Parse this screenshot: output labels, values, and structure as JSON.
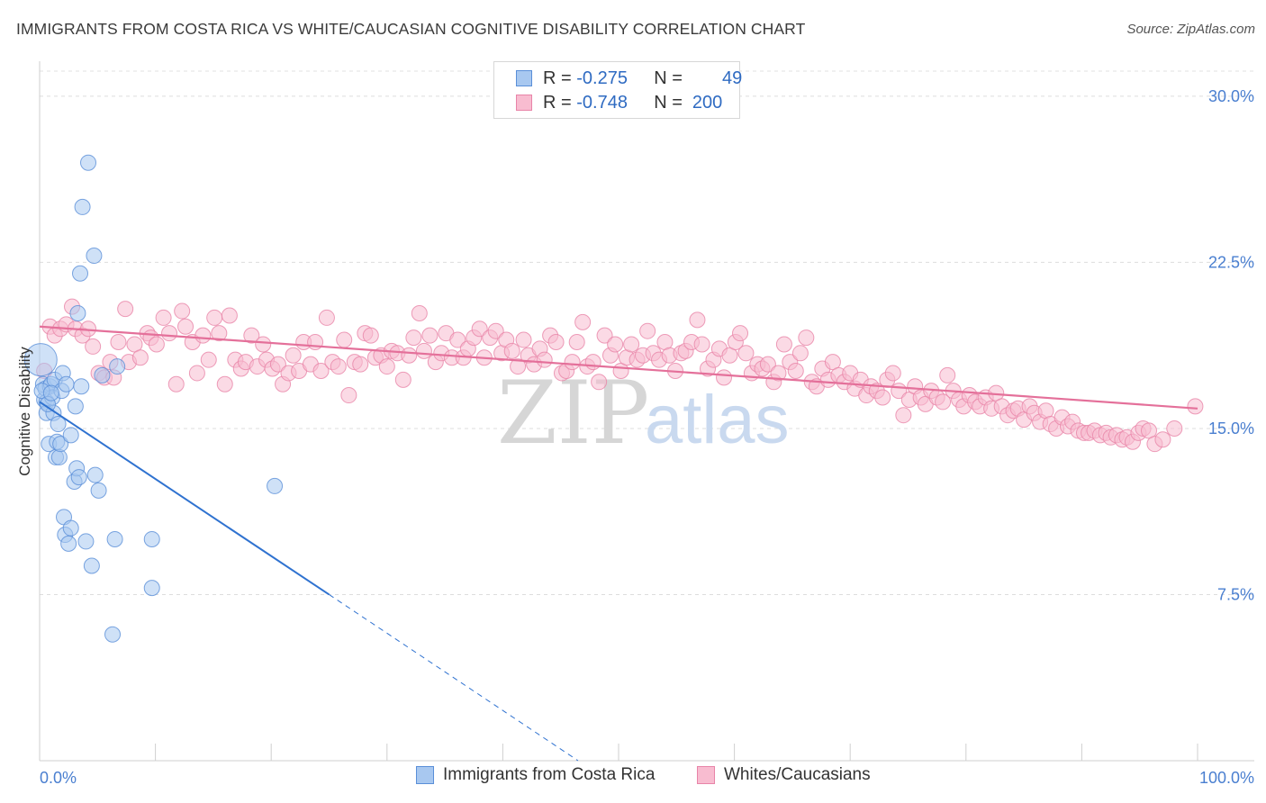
{
  "header": {
    "title": "IMMIGRANTS FROM COSTA RICA VS WHITE/CAUCASIAN COGNITIVE DISABILITY CORRELATION CHART",
    "source": "Source: ZipAtlas.com"
  },
  "legend": {
    "rows": [
      {
        "r_label": "R = ",
        "r_value": "-0.275",
        "n_label": "N = ",
        "n_value": "49",
        "color": "#a8c8f0",
        "border": "#5a8fd8"
      },
      {
        "r_label": "R = ",
        "r_value": "-0.748",
        "n_label": "N = ",
        "n_value": "200",
        "color": "#f8bcd0",
        "border": "#e884a8"
      }
    ]
  },
  "bottom_legend": {
    "items": [
      {
        "label": "Immigrants from Costa Rica",
        "color": "#a8c8f0",
        "border": "#5a8fd8"
      },
      {
        "label": "Whites/Caucasians",
        "color": "#f8bcd0",
        "border": "#e884a8"
      }
    ]
  },
  "watermark": {
    "zip": "ZIP",
    "atlas": "atlas"
  },
  "chart_data": {
    "type": "scatter",
    "title": "IMMIGRANTS FROM COSTA RICA VS WHITE/CAUCASIAN COGNITIVE DISABILITY CORRELATION CHART",
    "xlabel": "",
    "ylabel": "Cognitive Disability",
    "xlim": [
      0,
      100
    ],
    "ylim": [
      0,
      31.5
    ],
    "x_tick_labels": [
      "0.0%",
      "100.0%"
    ],
    "y_ticks": [
      7.5,
      15.0,
      22.5,
      30.0
    ],
    "y_tick_labels": [
      "7.5%",
      "15.0%",
      "22.5%",
      "30.0%"
    ],
    "grid": true,
    "legend_position": "top-center",
    "series": [
      {
        "name": "Immigrants from Costa Rica",
        "color": "#a8c8f0",
        "stroke": "#5a8fd8",
        "trend": {
          "x0": 0.0,
          "y0": 16.2,
          "x1": 25.0,
          "y1": 7.5,
          "x_dash_end": 46.5,
          "y_dash_end": 0.0,
          "color": "#2f72d0"
        },
        "points": [
          [
            0.1,
            18.1
          ],
          [
            0.3,
            17.0
          ],
          [
            0.4,
            16.3
          ],
          [
            0.5,
            16.8
          ],
          [
            0.6,
            16.2
          ],
          [
            0.6,
            15.7
          ],
          [
            0.8,
            14.3
          ],
          [
            0.9,
            16.9
          ],
          [
            1.0,
            17.0
          ],
          [
            1.1,
            16.4
          ],
          [
            1.2,
            15.7
          ],
          [
            1.3,
            17.2
          ],
          [
            1.4,
            13.7
          ],
          [
            1.5,
            14.4
          ],
          [
            1.6,
            15.2
          ],
          [
            1.7,
            13.7
          ],
          [
            1.8,
            14.3
          ],
          [
            1.9,
            16.7
          ],
          [
            2.0,
            17.5
          ],
          [
            2.1,
            11.0
          ],
          [
            2.2,
            10.2
          ],
          [
            2.3,
            17.0
          ],
          [
            2.5,
            9.8
          ],
          [
            2.7,
            10.5
          ],
          [
            2.7,
            14.7
          ],
          [
            3.0,
            12.6
          ],
          [
            3.1,
            16.0
          ],
          [
            3.2,
            13.2
          ],
          [
            3.3,
            20.2
          ],
          [
            3.4,
            12.8
          ],
          [
            3.5,
            22.0
          ],
          [
            3.6,
            16.9
          ],
          [
            3.7,
            25.0
          ],
          [
            4.0,
            9.9
          ],
          [
            4.2,
            27.0
          ],
          [
            4.5,
            8.8
          ],
          [
            4.7,
            22.8
          ],
          [
            4.8,
            12.9
          ],
          [
            5.1,
            12.2
          ],
          [
            5.4,
            17.4
          ],
          [
            6.3,
            5.7
          ],
          [
            6.5,
            10.0
          ],
          [
            6.7,
            17.8
          ],
          [
            9.7,
            10.0
          ],
          [
            9.7,
            7.8
          ],
          [
            20.3,
            12.4
          ],
          [
            0.2,
            16.7
          ],
          [
            0.7,
            16.1
          ],
          [
            1.0,
            16.6
          ]
        ]
      },
      {
        "name": "Whites/Caucasians",
        "color": "#f8bcd0",
        "stroke": "#e884a8",
        "trend": {
          "x0": 0.0,
          "y0": 19.6,
          "x1": 100.0,
          "y1": 15.9,
          "color": "#e4709a"
        },
        "points": [
          [
            0.4,
            17.6
          ],
          [
            0.9,
            19.6
          ],
          [
            1.3,
            19.2
          ],
          [
            1.8,
            19.5
          ],
          [
            2.3,
            19.7
          ],
          [
            2.8,
            20.5
          ],
          [
            3.1,
            19.5
          ],
          [
            3.7,
            19.2
          ],
          [
            4.2,
            19.5
          ],
          [
            4.6,
            18.7
          ],
          [
            5.1,
            17.5
          ],
          [
            5.6,
            17.3
          ],
          [
            6.1,
            18.0
          ],
          [
            6.4,
            17.3
          ],
          [
            6.8,
            18.9
          ],
          [
            7.4,
            20.4
          ],
          [
            7.7,
            18.0
          ],
          [
            8.2,
            18.8
          ],
          [
            8.7,
            18.2
          ],
          [
            9.3,
            19.3
          ],
          [
            9.6,
            19.1
          ],
          [
            10.1,
            18.8
          ],
          [
            10.7,
            20.0
          ],
          [
            11.2,
            19.3
          ],
          [
            11.8,
            17.0
          ],
          [
            12.3,
            20.3
          ],
          [
            12.6,
            19.6
          ],
          [
            13.2,
            18.9
          ],
          [
            13.6,
            17.5
          ],
          [
            14.1,
            19.2
          ],
          [
            14.6,
            18.1
          ],
          [
            15.1,
            20.0
          ],
          [
            15.5,
            19.3
          ],
          [
            16.0,
            17.0
          ],
          [
            16.4,
            20.1
          ],
          [
            16.9,
            18.1
          ],
          [
            17.4,
            17.7
          ],
          [
            17.8,
            18.0
          ],
          [
            18.3,
            19.2
          ],
          [
            18.8,
            17.8
          ],
          [
            19.3,
            18.8
          ],
          [
            19.6,
            18.1
          ],
          [
            20.1,
            17.7
          ],
          [
            20.6,
            17.9
          ],
          [
            21.0,
            17.0
          ],
          [
            21.5,
            17.5
          ],
          [
            21.9,
            18.3
          ],
          [
            22.4,
            17.6
          ],
          [
            22.8,
            18.9
          ],
          [
            23.4,
            17.9
          ],
          [
            23.8,
            18.9
          ],
          [
            24.3,
            17.6
          ],
          [
            24.8,
            20.0
          ],
          [
            25.3,
            18.0
          ],
          [
            25.8,
            17.8
          ],
          [
            26.3,
            19.0
          ],
          [
            26.7,
            16.5
          ],
          [
            27.2,
            18.0
          ],
          [
            27.7,
            17.9
          ],
          [
            28.1,
            19.3
          ],
          [
            28.6,
            19.2
          ],
          [
            29.0,
            18.2
          ],
          [
            29.5,
            18.3
          ],
          [
            30.0,
            17.8
          ],
          [
            30.4,
            18.5
          ],
          [
            30.9,
            18.4
          ],
          [
            31.4,
            17.2
          ],
          [
            31.9,
            18.3
          ],
          [
            32.3,
            19.1
          ],
          [
            32.8,
            20.2
          ],
          [
            33.2,
            18.5
          ],
          [
            33.7,
            19.2
          ],
          [
            34.2,
            18.0
          ],
          [
            34.7,
            18.4
          ],
          [
            35.1,
            19.3
          ],
          [
            35.6,
            18.2
          ],
          [
            36.1,
            19.0
          ],
          [
            36.6,
            18.2
          ],
          [
            37.0,
            18.6
          ],
          [
            37.5,
            19.1
          ],
          [
            38.0,
            19.5
          ],
          [
            38.4,
            18.2
          ],
          [
            38.9,
            19.1
          ],
          [
            39.4,
            19.4
          ],
          [
            39.9,
            18.4
          ],
          [
            40.3,
            19.0
          ],
          [
            40.8,
            18.5
          ],
          [
            41.3,
            17.8
          ],
          [
            41.8,
            19.0
          ],
          [
            42.2,
            18.3
          ],
          [
            42.7,
            17.9
          ],
          [
            43.2,
            18.6
          ],
          [
            43.6,
            18.1
          ],
          [
            44.1,
            19.2
          ],
          [
            44.6,
            18.9
          ],
          [
            45.1,
            17.5
          ],
          [
            45.5,
            17.6
          ],
          [
            46.0,
            18.0
          ],
          [
            46.4,
            18.9
          ],
          [
            46.9,
            19.8
          ],
          [
            47.3,
            17.8
          ],
          [
            47.8,
            18.0
          ],
          [
            48.3,
            17.1
          ],
          [
            48.8,
            19.2
          ],
          [
            49.3,
            18.3
          ],
          [
            49.7,
            18.8
          ],
          [
            50.2,
            17.6
          ],
          [
            50.7,
            18.2
          ],
          [
            51.1,
            18.8
          ],
          [
            51.6,
            18.1
          ],
          [
            52.1,
            18.3
          ],
          [
            52.5,
            19.4
          ],
          [
            53.0,
            18.4
          ],
          [
            53.5,
            18.1
          ],
          [
            54.0,
            18.9
          ],
          [
            54.4,
            18.3
          ],
          [
            54.9,
            17.6
          ],
          [
            55.4,
            18.4
          ],
          [
            55.8,
            18.5
          ],
          [
            56.3,
            18.9
          ],
          [
            56.8,
            19.9
          ],
          [
            57.2,
            18.8
          ],
          [
            57.7,
            17.7
          ],
          [
            58.2,
            18.1
          ],
          [
            58.7,
            18.6
          ],
          [
            59.1,
            17.3
          ],
          [
            59.6,
            18.3
          ],
          [
            60.1,
            18.9
          ],
          [
            60.5,
            19.3
          ],
          [
            61.0,
            18.4
          ],
          [
            61.5,
            17.5
          ],
          [
            62.0,
            17.9
          ],
          [
            62.4,
            17.7
          ],
          [
            62.9,
            17.9
          ],
          [
            63.4,
            17.1
          ],
          [
            63.8,
            17.5
          ],
          [
            64.3,
            18.8
          ],
          [
            64.8,
            18.0
          ],
          [
            65.3,
            17.6
          ],
          [
            65.7,
            18.4
          ],
          [
            66.2,
            19.1
          ],
          [
            66.7,
            17.1
          ],
          [
            67.1,
            16.9
          ],
          [
            67.6,
            17.7
          ],
          [
            68.1,
            17.2
          ],
          [
            68.5,
            18.0
          ],
          [
            69.0,
            17.4
          ],
          [
            69.5,
            17.1
          ],
          [
            70.0,
            17.5
          ],
          [
            70.4,
            16.8
          ],
          [
            70.9,
            17.2
          ],
          [
            71.4,
            16.5
          ],
          [
            71.8,
            16.9
          ],
          [
            72.3,
            16.7
          ],
          [
            72.8,
            16.4
          ],
          [
            73.2,
            17.2
          ],
          [
            73.7,
            17.5
          ],
          [
            74.2,
            16.7
          ],
          [
            74.6,
            15.6
          ],
          [
            75.1,
            16.3
          ],
          [
            75.6,
            16.9
          ],
          [
            76.1,
            16.4
          ],
          [
            76.5,
            16.1
          ],
          [
            77.0,
            16.7
          ],
          [
            77.5,
            16.4
          ],
          [
            78.0,
            16.2
          ],
          [
            78.4,
            17.4
          ],
          [
            78.9,
            16.7
          ],
          [
            79.4,
            16.3
          ],
          [
            79.8,
            16.0
          ],
          [
            80.3,
            16.5
          ],
          [
            80.8,
            16.2
          ],
          [
            81.2,
            16.0
          ],
          [
            81.7,
            16.4
          ],
          [
            82.2,
            15.9
          ],
          [
            82.6,
            16.6
          ],
          [
            83.1,
            16.0
          ],
          [
            83.6,
            15.6
          ],
          [
            84.1,
            15.8
          ],
          [
            84.5,
            15.9
          ],
          [
            85.0,
            15.4
          ],
          [
            85.5,
            16.0
          ],
          [
            85.9,
            15.7
          ],
          [
            86.4,
            15.3
          ],
          [
            86.9,
            15.8
          ],
          [
            87.3,
            15.2
          ],
          [
            87.8,
            15.0
          ],
          [
            88.3,
            15.5
          ],
          [
            88.8,
            15.1
          ],
          [
            89.2,
            15.3
          ],
          [
            89.7,
            14.9
          ],
          [
            90.2,
            14.8
          ],
          [
            90.6,
            14.8
          ],
          [
            91.1,
            14.9
          ],
          [
            91.6,
            14.7
          ],
          [
            92.1,
            14.8
          ],
          [
            92.5,
            14.6
          ],
          [
            93.0,
            14.7
          ],
          [
            93.5,
            14.5
          ],
          [
            93.9,
            14.6
          ],
          [
            94.4,
            14.4
          ],
          [
            94.9,
            14.8
          ],
          [
            95.3,
            15.0
          ],
          [
            95.8,
            14.9
          ],
          [
            96.3,
            14.3
          ],
          [
            97.0,
            14.5
          ],
          [
            98.0,
            15.0
          ],
          [
            99.8,
            16.0
          ]
        ]
      }
    ]
  }
}
